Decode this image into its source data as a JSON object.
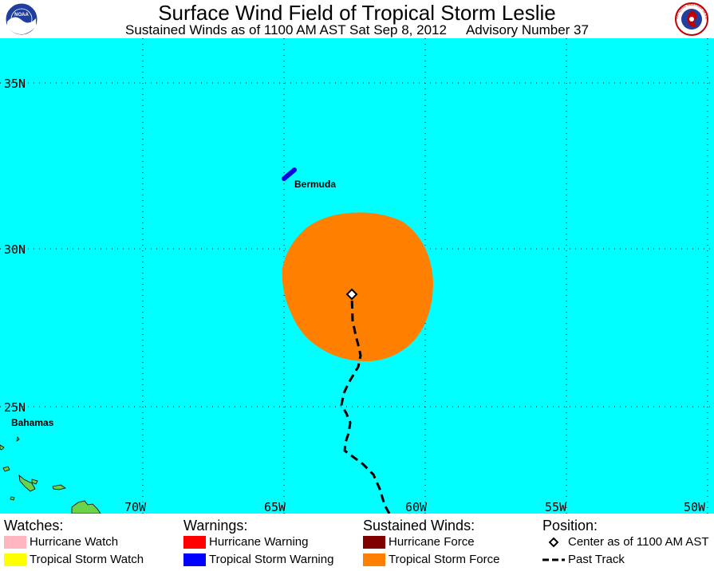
{
  "header": {
    "title": "Surface Wind Field of Tropical Storm Leslie",
    "subtitle_left": "Sustained Winds as of 1100 AM AST Sat Sep 8, 2012",
    "subtitle_right": "Advisory Number 37",
    "logo_left": "NOAA",
    "logo_right": "NATIONAL WEATHER SERVICE"
  },
  "map": {
    "ocean_color": "#00FFFF",
    "latitude_labels": [
      "35N",
      "30N",
      "25N"
    ],
    "longitude_labels": [
      "70W",
      "65W",
      "60W",
      "55W",
      "50W"
    ],
    "places": [
      "Bermuda",
      "Bahamas"
    ],
    "storm_center": {
      "lat": 28.6,
      "lon": -62.3
    },
    "tropical_storm_force_color": "#FF7F00",
    "tropical_storm_warning_color": "#0000FF"
  },
  "legend": {
    "watches": {
      "heading": "Watches:",
      "items": [
        {
          "label": "Hurricane Watch",
          "color": "#FFB6C1"
        },
        {
          "label": "Tropical Storm Watch",
          "color": "#FFFF00"
        }
      ]
    },
    "warnings": {
      "heading": "Warnings:",
      "items": [
        {
          "label": "Hurricane Warning",
          "color": "#FF0000"
        },
        {
          "label": "Tropical Storm Warning",
          "color": "#0000FF"
        }
      ]
    },
    "winds": {
      "heading": "Sustained Winds:",
      "items": [
        {
          "label": "Hurricane Force",
          "color": "#800000"
        },
        {
          "label": "Tropical Storm Force",
          "color": "#FF7F00"
        }
      ]
    },
    "position": {
      "heading": "Position:",
      "center_label": "Center as of 1100 AM AST",
      "track_label": "Past Track"
    }
  }
}
